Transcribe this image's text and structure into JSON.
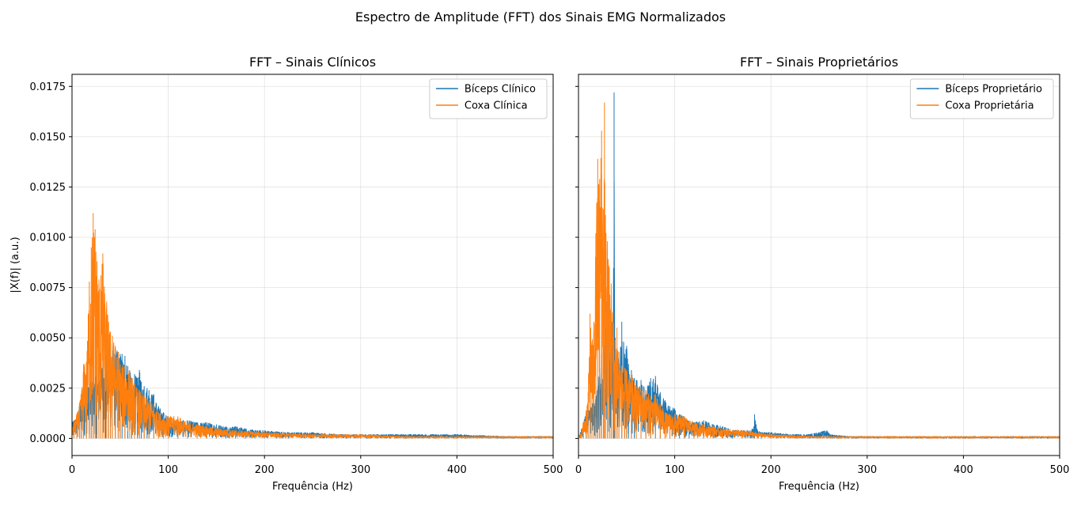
{
  "figure": {
    "suptitle": "Espectro de Amplitude (FFT) dos Sinais EMG Normalizados"
  },
  "chart_data": [
    {
      "type": "line",
      "title": "FFT – Sinais Clínicos",
      "xlabel": "Frequência (Hz)",
      "ylabel": "|X(f)| (a.u.)",
      "xlim": [
        0,
        500
      ],
      "ylim": [
        -0.00085,
        0.0181
      ],
      "xticks": [
        0,
        100,
        200,
        300,
        400,
        500
      ],
      "xtick_labels": [
        "0",
        "100",
        "200",
        "300",
        "400",
        "500"
      ],
      "yticks": [
        0.0,
        0.0025,
        0.005,
        0.0075,
        0.01,
        0.0125,
        0.015,
        0.0175
      ],
      "ytick_labels": [
        "0.0000",
        "0.0025",
        "0.0050",
        "0.0075",
        "0.0100",
        "0.0125",
        "0.0150",
        "0.0175"
      ],
      "grid": true,
      "legend": "top-right",
      "series": [
        {
          "name": "Bíceps Clínico",
          "color": "#1f77b4",
          "x": [
            0,
            2,
            5,
            8,
            10,
            12,
            15,
            18,
            20,
            22,
            25,
            28,
            30,
            32,
            35,
            38,
            40,
            42,
            45,
            48,
            50,
            52,
            55,
            58,
            60,
            62,
            65,
            68,
            70,
            72,
            75,
            78,
            80,
            85,
            90,
            95,
            100,
            110,
            120,
            130,
            140,
            150,
            160,
            170,
            180,
            190,
            200,
            225,
            250,
            275,
            300,
            350,
            400,
            450,
            500
          ],
          "y": [
            0.0008,
            0.0009,
            0.0011,
            0.0017,
            0.002,
            0.0022,
            0.0025,
            0.0027,
            0.0028,
            0.003,
            0.0033,
            0.0036,
            0.0038,
            0.0041,
            0.0043,
            0.0045,
            0.0047,
            0.0046,
            0.0045,
            0.0043,
            0.0042,
            0.0042,
            0.0041,
            0.0036,
            0.0034,
            0.003,
            0.0032,
            0.003,
            0.0034,
            0.0028,
            0.0026,
            0.0025,
            0.0024,
            0.0022,
            0.0016,
            0.0013,
            0.0011,
            0.0009,
            0.0009,
            0.0008,
            0.0008,
            0.0007,
            0.0006,
            0.0006,
            0.0005,
            0.0004,
            0.0004,
            0.0003,
            0.0003,
            0.0002,
            0.0002,
            0.0002,
            0.0002,
            0.0001,
            0.0001
          ]
        },
        {
          "name": "Coxa Clínica",
          "color": "#ff7f0e",
          "x": [
            0,
            2,
            5,
            8,
            10,
            12,
            15,
            18,
            20,
            22,
            24,
            26,
            28,
            30,
            32,
            34,
            36,
            38,
            40,
            42,
            45,
            48,
            50,
            55,
            60,
            65,
            70,
            75,
            80,
            85,
            90,
            95,
            100,
            110,
            120,
            130,
            140,
            150,
            170,
            200,
            250,
            300,
            350,
            400,
            450,
            500
          ],
          "y": [
            0.0004,
            0.0008,
            0.0012,
            0.0018,
            0.0024,
            0.0037,
            0.0038,
            0.0078,
            0.0095,
            0.0112,
            0.0104,
            0.0088,
            0.0079,
            0.0081,
            0.0092,
            0.0072,
            0.0068,
            0.0058,
            0.0053,
            0.0051,
            0.0046,
            0.0043,
            0.0037,
            0.0036,
            0.0034,
            0.0027,
            0.0024,
            0.0021,
            0.0019,
            0.0017,
            0.0013,
            0.0011,
            0.0011,
            0.0011,
            0.0008,
            0.0007,
            0.0006,
            0.0005,
            0.0004,
            0.0003,
            0.0002,
            0.0002,
            0.0001,
            0.0001,
            0.0001,
            0.0001
          ]
        }
      ]
    },
    {
      "type": "line",
      "title": "FFT – Sinais Proprietários",
      "xlabel": "Frequência (Hz)",
      "ylabel": "",
      "xlim": [
        0,
        500
      ],
      "ylim": [
        -0.00085,
        0.0181
      ],
      "xticks": [
        0,
        100,
        200,
        300,
        400,
        500
      ],
      "xtick_labels": [
        "0",
        "100",
        "200",
        "300",
        "400",
        "500"
      ],
      "yticks": [
        0.0,
        0.0025,
        0.005,
        0.0075,
        0.01,
        0.0125,
        0.015,
        0.0175
      ],
      "ytick_labels": [],
      "grid": true,
      "legend": "top-right",
      "series": [
        {
          "name": "Bíceps Proprietário",
          "color": "#1f77b4",
          "x": [
            0,
            2,
            5,
            8,
            10,
            12,
            14,
            16,
            18,
            20,
            22,
            24,
            26,
            28,
            30,
            32,
            34,
            36,
            37,
            38,
            40,
            42,
            45,
            48,
            50,
            52,
            55,
            58,
            60,
            65,
            70,
            75,
            80,
            85,
            90,
            95,
            100,
            105,
            110,
            115,
            120,
            130,
            140,
            150,
            160,
            170,
            180,
            183,
            186,
            190,
            200,
            220,
            240,
            258,
            262,
            280,
            300,
            350,
            400,
            450,
            500
          ],
          "y": [
            0.0002,
            0.0003,
            0.0008,
            0.0013,
            0.0012,
            0.0016,
            0.0018,
            0.0019,
            0.0021,
            0.0025,
            0.0035,
            0.0042,
            0.0047,
            0.005,
            0.0093,
            0.0043,
            0.0065,
            0.0052,
            0.0172,
            0.005,
            0.0045,
            0.0039,
            0.0058,
            0.0042,
            0.0046,
            0.0037,
            0.0034,
            0.003,
            0.0029,
            0.0029,
            0.0024,
            0.003,
            0.0031,
            0.0023,
            0.0019,
            0.0016,
            0.0015,
            0.0012,
            0.0011,
            0.0008,
            0.0008,
            0.0009,
            0.0007,
            0.0006,
            0.0004,
            0.0004,
            0.0004,
            0.0012,
            0.0004,
            0.0003,
            0.0003,
            0.0002,
            0.0002,
            0.0004,
            0.0002,
            0.0001,
            0.0001,
            0.0001,
            0.0001,
            0.0001,
            0.0001
          ]
        },
        {
          "name": "Coxa Proprietária",
          "color": "#ff7f0e",
          "x": [
            0,
            2,
            5,
            8,
            10,
            12,
            14,
            16,
            18,
            20,
            22,
            24,
            26,
            27,
            28,
            30,
            32,
            34,
            36,
            38,
            40,
            42,
            45,
            48,
            50,
            55,
            60,
            65,
            70,
            75,
            80,
            85,
            90,
            95,
            100,
            110,
            120,
            130,
            140,
            150,
            170,
            200,
            250,
            300,
            350,
            400,
            450,
            500
          ],
          "y": [
            0.0001,
            0.0002,
            0.0008,
            0.0014,
            0.0023,
            0.0062,
            0.0048,
            0.0058,
            0.0102,
            0.0139,
            0.0129,
            0.0153,
            0.0114,
            0.0167,
            0.0111,
            0.0098,
            0.0085,
            0.0077,
            0.0063,
            0.0049,
            0.0055,
            0.0043,
            0.0036,
            0.0035,
            0.0034,
            0.0032,
            0.0026,
            0.0025,
            0.0024,
            0.0021,
            0.0022,
            0.0017,
            0.0013,
            0.0012,
            0.0012,
            0.0011,
            0.0008,
            0.0007,
            0.0006,
            0.0005,
            0.0004,
            0.0002,
            0.0001,
            0.0001,
            0.0001,
            0.0001,
            0.0001,
            0.0001
          ]
        }
      ]
    }
  ]
}
